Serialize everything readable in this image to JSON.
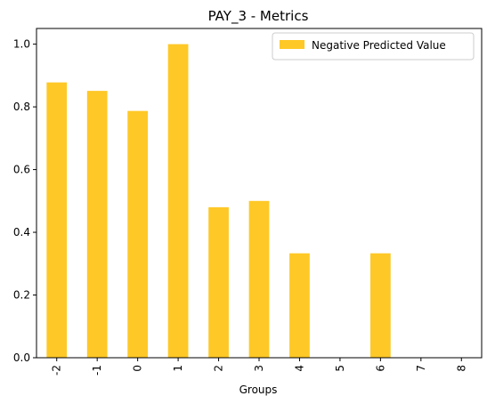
{
  "chart_data": {
    "type": "bar",
    "title": "PAY_3 - Metrics",
    "xlabel": "Groups",
    "ylabel": "",
    "categories": [
      "-2",
      "-1",
      "0",
      "1",
      "2",
      "3",
      "4",
      "5",
      "6",
      "7",
      "8"
    ],
    "series": [
      {
        "name": "Negative Predicted Value",
        "color": "#fec826",
        "values": [
          0.878,
          0.851,
          0.787,
          1.0,
          0.48,
          0.5,
          0.333,
          0.0,
          0.333,
          0.0,
          0.0
        ]
      }
    ],
    "ylim": [
      0,
      1.05
    ],
    "yticks": [
      "0.0",
      "0.2",
      "0.4",
      "0.6",
      "0.8",
      "1.0"
    ],
    "grid": false,
    "legend_position": "top-right"
  }
}
